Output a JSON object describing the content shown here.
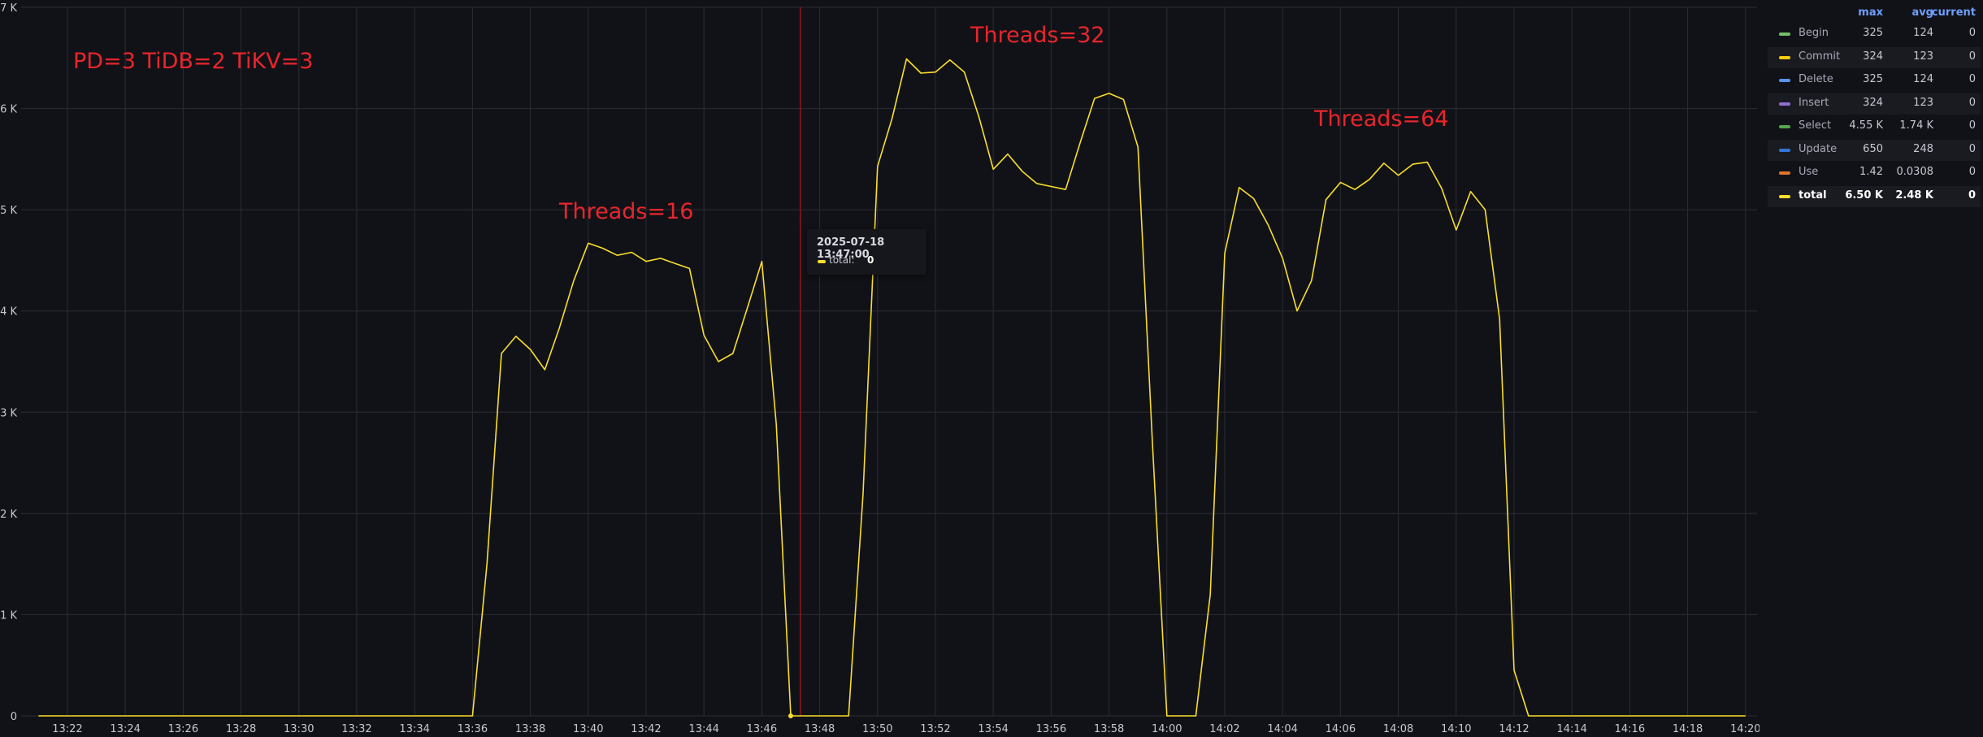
{
  "chart_data": {
    "type": "line",
    "series": [
      {
        "name": "total",
        "color": "#fade2a",
        "points": [
          [
            "13:21",
            0
          ],
          [
            "13:36",
            0
          ],
          [
            "13:36:30",
            1500
          ],
          [
            "13:37",
            3580
          ],
          [
            "13:37:30",
            3750
          ],
          [
            "13:38",
            3620
          ],
          [
            "13:38:30",
            3420
          ],
          [
            "13:39",
            3830
          ],
          [
            "13:39:30",
            4300
          ],
          [
            "13:40",
            4670
          ],
          [
            "13:40:30",
            4620
          ],
          [
            "13:41",
            4550
          ],
          [
            "13:41:30",
            4580
          ],
          [
            "13:42",
            4490
          ],
          [
            "13:42:30",
            4520
          ],
          [
            "13:43",
            4470
          ],
          [
            "13:43:30",
            4420
          ],
          [
            "13:44",
            3760
          ],
          [
            "13:44:30",
            3500
          ],
          [
            "13:45",
            3580
          ],
          [
            "13:45:30",
            4030
          ],
          [
            "13:46",
            4490
          ],
          [
            "13:46:30",
            2880
          ],
          [
            "13:47",
            0
          ],
          [
            "13:48",
            0
          ],
          [
            "13:49",
            0
          ],
          [
            "13:49:30",
            2200
          ],
          [
            "13:50",
            5430
          ],
          [
            "13:50:30",
            5900
          ],
          [
            "13:51",
            6490
          ],
          [
            "13:51:30",
            6350
          ],
          [
            "13:52",
            6360
          ],
          [
            "13:52:30",
            6480
          ],
          [
            "13:53",
            6360
          ],
          [
            "13:53:30",
            5920
          ],
          [
            "13:54",
            5400
          ],
          [
            "13:54:30",
            5550
          ],
          [
            "13:55",
            5380
          ],
          [
            "13:55:30",
            5260
          ],
          [
            "13:56",
            5230
          ],
          [
            "13:56:30",
            5200
          ],
          [
            "13:57",
            5660
          ],
          [
            "13:57:30",
            6100
          ],
          [
            "13:58",
            6150
          ],
          [
            "13:58:30",
            6090
          ],
          [
            "13:59",
            5620
          ],
          [
            "13:59:30",
            2700
          ],
          [
            "14:00",
            0
          ],
          [
            "14:01",
            0
          ],
          [
            "14:01:30",
            1200
          ],
          [
            "14:02",
            4570
          ],
          [
            "14:02:30",
            5220
          ],
          [
            "14:03",
            5110
          ],
          [
            "14:03:30",
            4850
          ],
          [
            "14:04",
            4520
          ],
          [
            "14:04:30",
            4000
          ],
          [
            "14:05",
            4300
          ],
          [
            "14:05:30",
            5100
          ],
          [
            "14:06",
            5270
          ],
          [
            "14:06:30",
            5200
          ],
          [
            "14:07",
            5300
          ],
          [
            "14:07:30",
            5460
          ],
          [
            "14:08",
            5340
          ],
          [
            "14:08:30",
            5450
          ],
          [
            "14:09",
            5470
          ],
          [
            "14:09:30",
            5210
          ],
          [
            "14:10",
            4800
          ],
          [
            "14:10:30",
            5180
          ],
          [
            "14:11",
            5000
          ],
          [
            "14:11:30",
            3920
          ],
          [
            "14:12",
            450
          ],
          [
            "14:12:30",
            0
          ],
          [
            "14:20",
            0
          ]
        ]
      }
    ],
    "x_ticks": [
      "13:22",
      "13:24",
      "13:26",
      "13:28",
      "13:30",
      "13:32",
      "13:34",
      "13:36",
      "13:38",
      "13:40",
      "13:42",
      "13:44",
      "13:46",
      "13:48",
      "13:50",
      "13:52",
      "13:54",
      "13:56",
      "13:58",
      "14:00",
      "14:02",
      "14:04",
      "14:06",
      "14:08",
      "14:10",
      "14:12",
      "14:14",
      "14:16",
      "14:18",
      "14:20"
    ],
    "y_ticks": [
      "0",
      "1 K",
      "2 K",
      "3 K",
      "4 K",
      "5 K",
      "6 K",
      "7 K"
    ],
    "ylim": [
      0,
      7000
    ],
    "xlim": [
      "13:20:24",
      "14:20:24"
    ],
    "grid": true,
    "crosshair_time": "13:47:20",
    "annotations": [
      {
        "text": "PD=3 TiDB=2 TiKV=3"
      },
      {
        "text": "Threads=16"
      },
      {
        "text": "Threads=32"
      },
      {
        "text": "Threads=64"
      }
    ]
  },
  "tooltip": {
    "time": "2025-07-18 13:47:00",
    "label": "total:",
    "value": "0"
  },
  "legend": {
    "headers": {
      "max": "max",
      "avg": "avg",
      "current": "current"
    },
    "rows": [
      {
        "name": "Begin",
        "color": "#73bf69",
        "max": "325",
        "avg": "124",
        "current": "0"
      },
      {
        "name": "Commit",
        "color": "#f2cc0c",
        "max": "324",
        "avg": "123",
        "current": "0"
      },
      {
        "name": "Delete",
        "color": "#5794f2",
        "max": "325",
        "avg": "124",
        "current": "0"
      },
      {
        "name": "Insert",
        "color": "#8f6ed5",
        "max": "324",
        "avg": "123",
        "current": "0"
      },
      {
        "name": "Select",
        "color": "#56a64b",
        "max": "4.55 K",
        "avg": "1.74 K",
        "current": "0"
      },
      {
        "name": "Update",
        "color": "#3274d9",
        "max": "650",
        "avg": "248",
        "current": "0"
      },
      {
        "name": "Use",
        "color": "#e0752d",
        "max": "1.42",
        "avg": "0.0308",
        "current": "0"
      },
      {
        "name": "total",
        "color": "#fade2a",
        "max": "6.50 K",
        "avg": "2.48 K",
        "current": "0"
      }
    ]
  }
}
